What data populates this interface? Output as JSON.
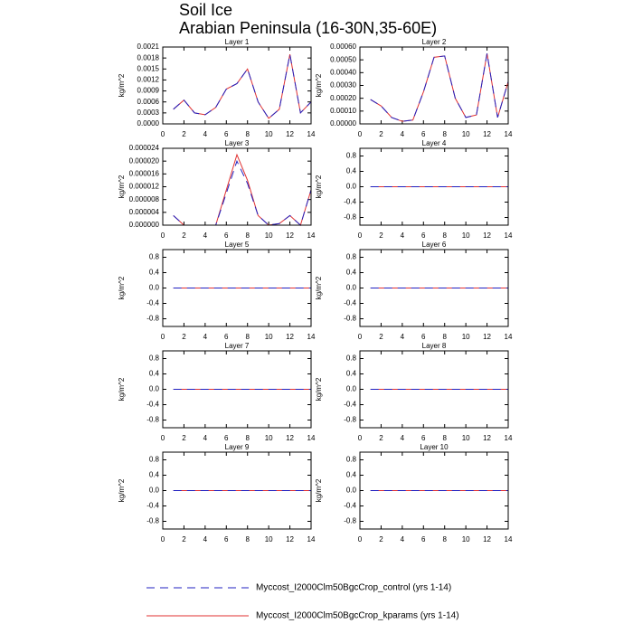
{
  "title": "Soil Ice",
  "subtitle": "Arabian Peninsula (16-30N,35-60E)",
  "legend": [
    {
      "name": "Myccost_I2000Clm50BgcCrop_control (yrs 1-14)",
      "color": "#2020c0",
      "dash": true
    },
    {
      "name": "Myccost_I2000Clm50BgcCrop_kparams (yrs 1-14)",
      "color": "#e03030",
      "dash": false
    }
  ],
  "chart_data": [
    {
      "type": "line",
      "title": "Layer 1",
      "ylabel": "kg/m^2",
      "x": [
        1,
        2,
        3,
        4,
        5,
        6,
        7,
        8,
        9,
        10,
        11,
        12,
        13,
        14
      ],
      "xlim": [
        0,
        14
      ],
      "xticks": [
        0,
        2,
        4,
        6,
        8,
        10,
        12,
        14
      ],
      "ylim": [
        0,
        0.0021
      ],
      "yticks": [
        {
          "value": 0,
          "label": "0.0000"
        },
        {
          "value": 0.0003,
          "label": "0.0003"
        },
        {
          "value": 0.0006,
          "label": "0.0006"
        },
        {
          "value": 0.0009,
          "label": "0.0009"
        },
        {
          "value": 0.0012,
          "label": "0.0012"
        },
        {
          "value": 0.0015,
          "label": "0.0015"
        },
        {
          "value": 0.0018,
          "label": "0.0018"
        },
        {
          "value": 0.0021,
          "label": "0.0021"
        }
      ],
      "series": [
        {
          "values": [
            0.0004,
            0.00065,
            0.0003,
            0.00025,
            0.00045,
            0.00095,
            0.0011,
            0.0015,
            0.0006,
            0.00015,
            0.0004,
            0.0019,
            0.0003,
            0.0006
          ]
        },
        {
          "values": [
            0.0004,
            0.00065,
            0.0003,
            0.00025,
            0.00045,
            0.00095,
            0.0011,
            0.0015,
            0.0006,
            0.00015,
            0.0004,
            0.0019,
            0.0003,
            0.0006
          ]
        }
      ]
    },
    {
      "type": "line",
      "title": "Layer 2",
      "ylabel": "kg/m^2",
      "x": [
        1,
        2,
        3,
        4,
        5,
        6,
        7,
        8,
        9,
        10,
        11,
        12,
        13,
        14
      ],
      "xlim": [
        0,
        14
      ],
      "xticks": [
        0,
        2,
        4,
        6,
        8,
        10,
        12,
        14
      ],
      "ylim": [
        0,
        0.0006
      ],
      "yticks": [
        {
          "value": 0,
          "label": "0.00000"
        },
        {
          "value": 0.0001,
          "label": "0.00010"
        },
        {
          "value": 0.0002,
          "label": "0.00020"
        },
        {
          "value": 0.0003,
          "label": "0.00030"
        },
        {
          "value": 0.0004,
          "label": "0.00040"
        },
        {
          "value": 0.0005,
          "label": "0.00050"
        },
        {
          "value": 0.0006,
          "label": "0.00060"
        }
      ],
      "series": [
        {
          "values": [
            0.00019,
            0.00014,
            5e-05,
            2e-05,
            3e-05,
            0.00025,
            0.00052,
            0.00053,
            0.0002,
            5e-05,
            7e-05,
            0.00055,
            5e-05,
            0.00033
          ]
        },
        {
          "values": [
            0.00019,
            0.00014,
            5e-05,
            2e-05,
            3e-05,
            0.00025,
            0.00052,
            0.00053,
            0.0002,
            5e-05,
            7e-05,
            0.00055,
            5e-05,
            0.00033
          ]
        }
      ]
    },
    {
      "type": "line",
      "title": "Layer 3",
      "ylabel": "kg/m^2",
      "x": [
        1,
        2,
        3,
        4,
        5,
        6,
        7,
        8,
        9,
        10,
        11,
        12,
        13,
        14
      ],
      "xlim": [
        0,
        14
      ],
      "xticks": [
        0,
        2,
        4,
        6,
        8,
        10,
        12,
        14
      ],
      "ylim": [
        0,
        2.4e-05
      ],
      "yticks": [
        {
          "value": 0,
          "label": "0.000000"
        },
        {
          "value": 4e-06,
          "label": "0.000004"
        },
        {
          "value": 8e-06,
          "label": "0.000008"
        },
        {
          "value": 1.2e-05,
          "label": "0.000012"
        },
        {
          "value": 1.6e-05,
          "label": "0.000016"
        },
        {
          "value": 2e-05,
          "label": "0.000020"
        },
        {
          "value": 2.4e-05,
          "label": "0.000024"
        }
      ],
      "series": [
        {
          "values": [
            3e-06,
            0,
            0,
            0,
            0,
            1e-05,
            2e-05,
            1.3e-05,
            3e-06,
            0,
            5e-07,
            3e-06,
            0,
            1.1e-05
          ]
        },
        {
          "values": [
            3e-06,
            0,
            0,
            0,
            0,
            1.1e-05,
            2.2e-05,
            1.4e-05,
            3e-06,
            0,
            5e-07,
            3e-06,
            0,
            1.1e-05
          ]
        }
      ]
    },
    {
      "type": "line",
      "title": "Layer 4",
      "ylabel": "kg/m^2",
      "x": [
        1,
        2,
        3,
        4,
        5,
        6,
        7,
        8,
        9,
        10,
        11,
        12,
        13,
        14
      ],
      "xlim": [
        0,
        14
      ],
      "xticks": [
        0,
        2,
        4,
        6,
        8,
        10,
        12,
        14
      ],
      "ylim": [
        -1,
        1
      ],
      "yticks": [
        0.8,
        0.4,
        {
          "value": 0,
          "label": "0.0"
        },
        -0.4,
        -0.8
      ],
      "series": [
        {
          "values": [
            0,
            0,
            0,
            0,
            0,
            0,
            0,
            0,
            0,
            0,
            0,
            0,
            0,
            0
          ]
        },
        {
          "values": [
            0,
            0,
            0,
            0,
            0,
            0,
            0,
            0,
            0,
            0,
            0,
            0,
            0,
            0
          ]
        }
      ]
    },
    {
      "type": "line",
      "title": "Layer 5",
      "ylabel": "kg/m^2",
      "x": [
        1,
        2,
        3,
        4,
        5,
        6,
        7,
        8,
        9,
        10,
        11,
        12,
        13,
        14
      ],
      "xlim": [
        0,
        14
      ],
      "xticks": [
        0,
        2,
        4,
        6,
        8,
        10,
        12,
        14
      ],
      "ylim": [
        -1,
        1
      ],
      "yticks": [
        0.8,
        0.4,
        {
          "value": 0,
          "label": "0.0"
        },
        -0.4,
        -0.8
      ],
      "series": [
        {
          "values": [
            0,
            0,
            0,
            0,
            0,
            0,
            0,
            0,
            0,
            0,
            0,
            0,
            0,
            0
          ]
        },
        {
          "values": [
            0,
            0,
            0,
            0,
            0,
            0,
            0,
            0,
            0,
            0,
            0,
            0,
            0,
            0
          ]
        }
      ]
    },
    {
      "type": "line",
      "title": "Layer 6",
      "ylabel": "kg/m^2",
      "x": [
        1,
        2,
        3,
        4,
        5,
        6,
        7,
        8,
        9,
        10,
        11,
        12,
        13,
        14
      ],
      "xlim": [
        0,
        14
      ],
      "xticks": [
        0,
        2,
        4,
        6,
        8,
        10,
        12,
        14
      ],
      "ylim": [
        -1,
        1
      ],
      "yticks": [
        0.8,
        0.4,
        {
          "value": 0,
          "label": "0.0"
        },
        -0.4,
        -0.8
      ],
      "series": [
        {
          "values": [
            0,
            0,
            0,
            0,
            0,
            0,
            0,
            0,
            0,
            0,
            0,
            0,
            0,
            0
          ]
        },
        {
          "values": [
            0,
            0,
            0,
            0,
            0,
            0,
            0,
            0,
            0,
            0,
            0,
            0,
            0,
            0
          ]
        }
      ]
    },
    {
      "type": "line",
      "title": "Layer 7",
      "ylabel": "kg/m^2",
      "x": [
        1,
        2,
        3,
        4,
        5,
        6,
        7,
        8,
        9,
        10,
        11,
        12,
        13,
        14
      ],
      "xlim": [
        0,
        14
      ],
      "xticks": [
        0,
        2,
        4,
        6,
        8,
        10,
        12,
        14
      ],
      "ylim": [
        -1,
        1
      ],
      "yticks": [
        0.8,
        0.4,
        {
          "value": 0,
          "label": "0.0"
        },
        -0.4,
        -0.8
      ],
      "series": [
        {
          "values": [
            0,
            0,
            0,
            0,
            0,
            0,
            0,
            0,
            0,
            0,
            0,
            0,
            0,
            0
          ]
        },
        {
          "values": [
            0,
            0,
            0,
            0,
            0,
            0,
            0,
            0,
            0,
            0,
            0,
            0,
            0,
            0
          ]
        }
      ]
    },
    {
      "type": "line",
      "title": "Layer 8",
      "ylabel": "kg/m^2",
      "x": [
        1,
        2,
        3,
        4,
        5,
        6,
        7,
        8,
        9,
        10,
        11,
        12,
        13,
        14
      ],
      "xlim": [
        0,
        14
      ],
      "xticks": [
        0,
        2,
        4,
        6,
        8,
        10,
        12,
        14
      ],
      "ylim": [
        -1,
        1
      ],
      "yticks": [
        0.8,
        0.4,
        {
          "value": 0,
          "label": "0.0"
        },
        -0.4,
        -0.8
      ],
      "series": [
        {
          "values": [
            0,
            0,
            0,
            0,
            0,
            0,
            0,
            0,
            0,
            0,
            0,
            0,
            0,
            0
          ]
        },
        {
          "values": [
            0,
            0,
            0,
            0,
            0,
            0,
            0,
            0,
            0,
            0,
            0,
            0,
            0,
            0
          ]
        }
      ]
    },
    {
      "type": "line",
      "title": "Layer 9",
      "ylabel": "kg/m^2",
      "x": [
        1,
        2,
        3,
        4,
        5,
        6,
        7,
        8,
        9,
        10,
        11,
        12,
        13,
        14
      ],
      "xlim": [
        0,
        14
      ],
      "xticks": [
        0,
        2,
        4,
        6,
        8,
        10,
        12,
        14
      ],
      "ylim": [
        -1,
        1
      ],
      "yticks": [
        0.8,
        0.4,
        {
          "value": 0,
          "label": "0.0"
        },
        -0.4,
        -0.8
      ],
      "series": [
        {
          "values": [
            0,
            0,
            0,
            0,
            0,
            0,
            0,
            0,
            0,
            0,
            0,
            0,
            0,
            0
          ]
        },
        {
          "values": [
            0,
            0,
            0,
            0,
            0,
            0,
            0,
            0,
            0,
            0,
            0,
            0,
            0,
            0
          ]
        }
      ]
    },
    {
      "type": "line",
      "title": "Layer 10",
      "ylabel": "kg/m^2",
      "x": [
        1,
        2,
        3,
        4,
        5,
        6,
        7,
        8,
        9,
        10,
        11,
        12,
        13,
        14
      ],
      "xlim": [
        0,
        14
      ],
      "xticks": [
        0,
        2,
        4,
        6,
        8,
        10,
        12,
        14
      ],
      "ylim": [
        -1,
        1
      ],
      "yticks": [
        0.8,
        0.4,
        {
          "value": 0,
          "label": "0.0"
        },
        -0.4,
        -0.8
      ],
      "series": [
        {
          "values": [
            0,
            0,
            0,
            0,
            0,
            0,
            0,
            0,
            0,
            0,
            0,
            0,
            0,
            0
          ]
        },
        {
          "values": [
            0,
            0,
            0,
            0,
            0,
            0,
            0,
            0,
            0,
            0,
            0,
            0,
            0,
            0
          ]
        }
      ]
    }
  ]
}
